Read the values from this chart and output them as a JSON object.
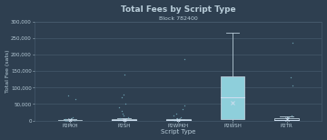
{
  "title": "Total Fees by Script Type",
  "subtitle": "Block 782400",
  "xlabel": "Script Type",
  "ylabel": "Total Fee (sats)",
  "background_color": "#2e3f50",
  "grid_color": "#4a5f72",
  "text_color": "#b8ccd8",
  "categories": [
    "P2PKH",
    "P2SH",
    "P2WPKH",
    "P2WSH",
    "P2TR"
  ],
  "box_data": {
    "P2PKH": {
      "q1": 0,
      "median": 0,
      "q3": 2000,
      "whislo": 0,
      "whishi": 3000,
      "mean": 500,
      "fliers": [
        75000,
        65000,
        10000,
        8000,
        5000,
        3000,
        2500,
        2000,
        1500,
        1000,
        600,
        400,
        200,
        100,
        50,
        20,
        10
      ]
    },
    "P2SH": {
      "q1": 0,
      "median": 1000,
      "q3": 5000,
      "whislo": 0,
      "whishi": 8000,
      "mean": 2000,
      "fliers": [
        140000,
        80000,
        70000,
        50000,
        40000,
        30000,
        20000,
        15000,
        10000,
        8000,
        5000,
        3000,
        2000,
        1000,
        500,
        300
      ]
    },
    "P2WPKH": {
      "q1": 0,
      "median": 1000,
      "q3": 3000,
      "whislo": 0,
      "whishi": 5000,
      "mean": 1500,
      "fliers": [
        185000,
        45000,
        35000,
        20000,
        15000,
        10000,
        8000,
        5000,
        3000,
        2000,
        1000,
        700,
        500,
        300,
        200,
        100,
        50
      ]
    },
    "P2WSH": {
      "q1": 3000,
      "median": 70000,
      "q3": 135000,
      "whislo": 0,
      "whishi": 265000,
      "mean": 55000,
      "fliers": []
    },
    "P2TR": {
      "q1": 0,
      "median": 2000,
      "q3": 8000,
      "whislo": 0,
      "whishi": 12000,
      "mean": 4000,
      "fliers": [
        235000,
        130000,
        105000,
        15000,
        10000,
        8000,
        5000,
        3000,
        2000,
        1000,
        500
      ]
    }
  },
  "box_color_default": "#2e3f50",
  "box_color_highlight": "#8ecfdb",
  "highlight_category": "P2WSH",
  "flier_color": "#7ab8c8",
  "median_color": "#ccddee",
  "whisker_color": "#b8ccd8",
  "mean_marker_color": "#ccddee",
  "ylim": [
    0,
    300000
  ],
  "yticks": [
    0,
    50000,
    100000,
    150000,
    200000,
    250000,
    300000
  ]
}
